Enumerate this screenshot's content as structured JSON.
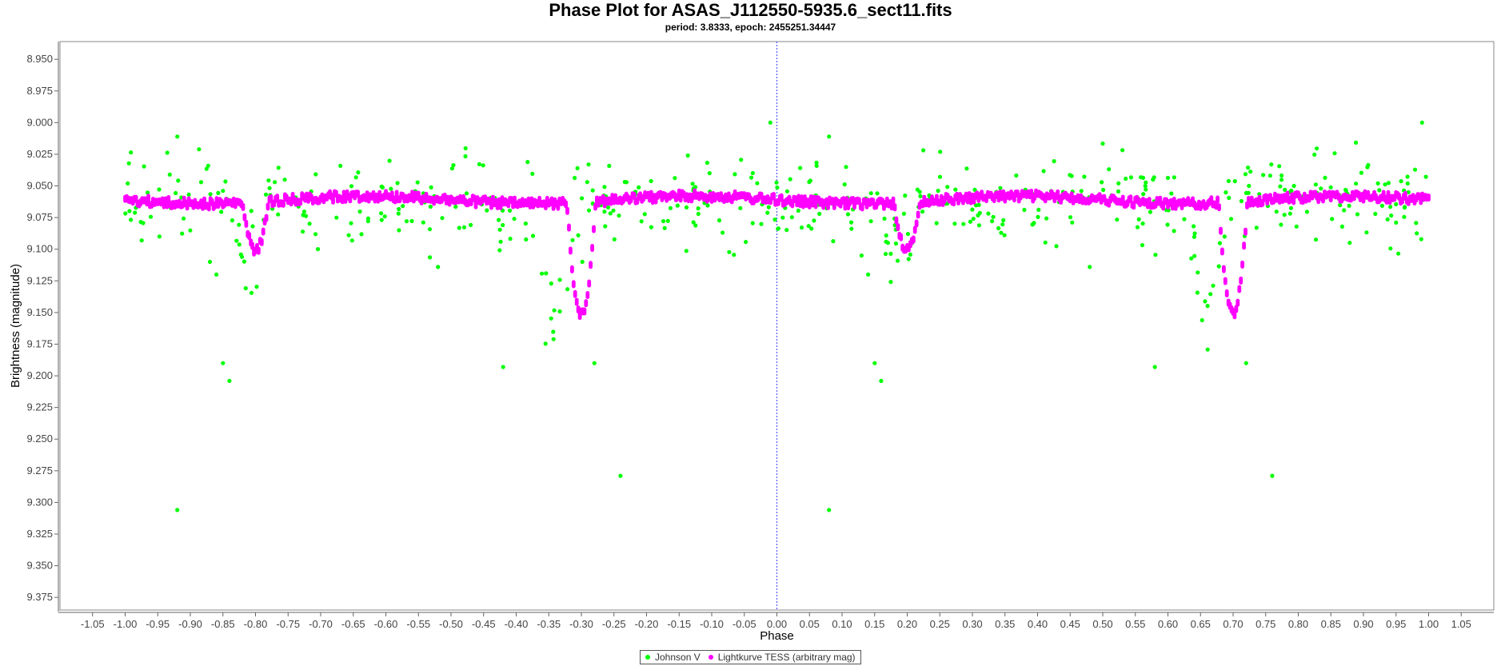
{
  "chart_data": {
    "type": "scatter",
    "title": "Phase Plot for ASAS_J112550-5935.6_sect11.fits",
    "subtitle": "period: 3.8333, epoch: 2455251.34447",
    "xlabel": "Phase",
    "ylabel": "Brightness (magnitude)",
    "xlim": [
      -1.1,
      1.1
    ],
    "ylim": [
      9.385,
      8.936
    ],
    "y_inverted": true,
    "x_ticks": [
      "-1.05",
      "-1.00",
      "-0.95",
      "-0.90",
      "-0.85",
      "-0.80",
      "-0.75",
      "-0.70",
      "-0.65",
      "-0.60",
      "-0.55",
      "-0.50",
      "-0.45",
      "-0.40",
      "-0.35",
      "-0.30",
      "-0.25",
      "-0.20",
      "-0.15",
      "-0.10",
      "-0.05",
      "0.00",
      "0.05",
      "0.10",
      "0.15",
      "0.20",
      "0.25",
      "0.30",
      "0.35",
      "0.40",
      "0.45",
      "0.50",
      "0.55",
      "0.60",
      "0.65",
      "0.70",
      "0.75",
      "0.80",
      "0.85",
      "0.90",
      "0.95",
      "1.00",
      "1.05"
    ],
    "y_ticks": [
      "8.950",
      "8.975",
      "9.000",
      "9.025",
      "9.050",
      "9.075",
      "9.100",
      "9.125",
      "9.150",
      "9.175",
      "9.200",
      "9.225",
      "9.250",
      "9.275",
      "9.300",
      "9.325",
      "9.350",
      "9.375"
    ],
    "marker_line_x": 0.0,
    "grid": false,
    "legend_position": "bottom-center",
    "series": [
      {
        "name": "Johnson V",
        "color": "#00ff00",
        "base_magnitude": 9.062,
        "scatter_magnitude": 0.018,
        "points_per_unit_phase": 260,
        "dips": [
          {
            "center": -0.81,
            "half_width": 0.03,
            "depth": 0.035
          },
          {
            "center": -0.34,
            "half_width": 0.03,
            "depth": 0.095
          },
          {
            "center": 0.19,
            "half_width": 0.03,
            "depth": 0.035
          },
          {
            "center": 0.66,
            "half_width": 0.03,
            "depth": 0.095
          }
        ],
        "outliers": [
          {
            "x": -0.92,
            "y": 9.306
          },
          {
            "x": 0.08,
            "y": 9.306
          },
          {
            "x": -0.24,
            "y": 9.279
          },
          {
            "x": 0.76,
            "y": 9.279
          },
          {
            "x": -0.85,
            "y": 9.19
          },
          {
            "x": 0.15,
            "y": 9.19
          },
          {
            "x": -0.84,
            "y": 9.204
          },
          {
            "x": 0.16,
            "y": 9.204
          },
          {
            "x": -0.42,
            "y": 9.193
          },
          {
            "x": 0.58,
            "y": 9.193
          },
          {
            "x": -0.28,
            "y": 9.19
          },
          {
            "x": 0.72,
            "y": 9.19
          },
          {
            "x": -0.52,
            "y": 9.114
          },
          {
            "x": 0.48,
            "y": 9.114
          },
          {
            "x": -0.01,
            "y": 9.0
          },
          {
            "x": 0.99,
            "y": 9.0
          },
          {
            "x": -0.92,
            "y": 9.011
          },
          {
            "x": 0.08,
            "y": 9.011
          },
          {
            "x": -0.86,
            "y": 9.12
          },
          {
            "x": 0.14,
            "y": 9.12
          },
          {
            "x": -0.87,
            "y": 9.11
          },
          {
            "x": 0.13,
            "y": 9.105
          }
        ]
      },
      {
        "name": "Lightkurve TESS (arbitrary mag)",
        "color": "#ff00ff",
        "base_magnitude": 9.061,
        "points_per_unit_phase": 420,
        "segment_breaks": [
          -0.82,
          -0.78,
          -0.32,
          -0.28,
          0.18,
          0.22,
          0.68,
          0.72
        ],
        "dips": [
          {
            "center": -0.8,
            "half_width": 0.02,
            "depth": 0.038
          },
          {
            "center": -0.3,
            "half_width": 0.022,
            "depth": 0.088
          },
          {
            "center": 0.2,
            "half_width": 0.02,
            "depth": 0.038
          },
          {
            "center": 0.7,
            "half_width": 0.022,
            "depth": 0.088
          }
        ]
      }
    ]
  },
  "legend": {
    "items": [
      {
        "label": "Johnson V",
        "color": "#00ff00"
      },
      {
        "label": "Lightkurve TESS (arbitrary mag)",
        "color": "#ff00ff"
      }
    ]
  }
}
